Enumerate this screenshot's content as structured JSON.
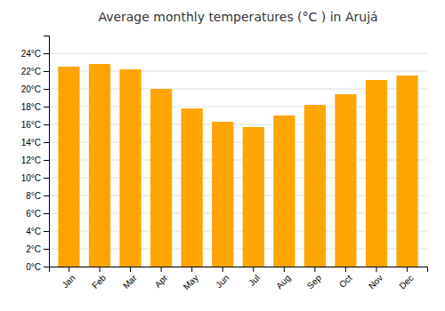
{
  "chart_data": {
    "type": "bar",
    "title": "Average monthly temperatures (°C ) in Arujá",
    "categories": [
      "Jan",
      "Feb",
      "Mar",
      "Apr",
      "May",
      "Jun",
      "Jul",
      "Aug",
      "Sep",
      "Oct",
      "Nov",
      "Dec"
    ],
    "values": [
      22.5,
      22.8,
      22.2,
      20.0,
      17.8,
      16.3,
      15.7,
      17.0,
      18.2,
      19.4,
      21.0,
      21.5
    ],
    "color": "#FFA500",
    "ylim": [
      0,
      26
    ],
    "yticks": [
      {
        "value": 0,
        "label": "0°C"
      },
      {
        "value": 2,
        "label": "2°C"
      },
      {
        "value": 4,
        "label": "4°C"
      },
      {
        "value": 6,
        "label": "6°C"
      },
      {
        "value": 8,
        "label": "8°C"
      },
      {
        "value": 10,
        "label": "10°C"
      },
      {
        "value": 12,
        "label": "12°C"
      },
      {
        "value": 14,
        "label": "14°C"
      },
      {
        "value": 16,
        "label": "16°C"
      },
      {
        "value": 18,
        "label": "18°C"
      },
      {
        "value": 20,
        "label": "20°C"
      },
      {
        "value": 22,
        "label": "22°C"
      },
      {
        "value": 24,
        "label": "24°C"
      }
    ],
    "grid": true
  }
}
